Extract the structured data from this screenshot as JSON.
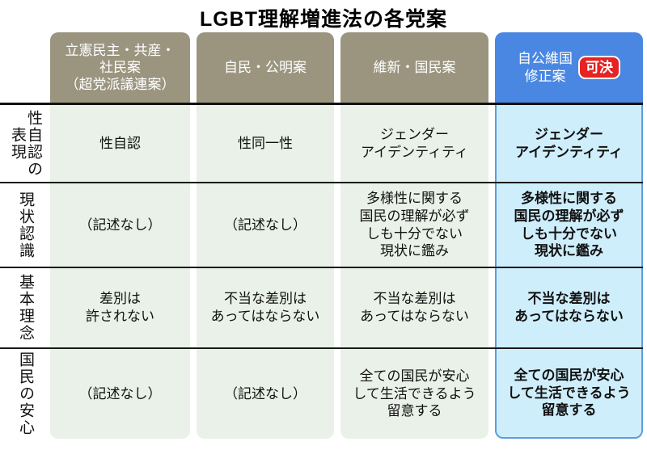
{
  "title": "LGBT理解増進法の各党案",
  "colors": {
    "header_olive": "#9b9580",
    "header_blue": "#4a87e2",
    "cell_green": "#e9f1e8",
    "cell_light_blue": "#cfeefb",
    "column_border_blue": "#5b9de2",
    "badge_red": "#e62222",
    "separator_black": "#1a1a1a"
  },
  "chart_data": {
    "type": "table",
    "title": "LGBT理解増進法の各党案",
    "columns": [
      {
        "label": "立憲民主・共産・\n社民案\n（超党派議連案）"
      },
      {
        "label": "自民・公明案"
      },
      {
        "label": "維新・国民案"
      },
      {
        "label": "自公維国\n修正案",
        "badge": "可決"
      }
    ],
    "rows": [
      {
        "header": "性自認の\n表現",
        "cells": [
          "性自認",
          "性同一性",
          "ジェンダー\nアイデンティティ",
          "ジェンダー\nアイデンティティ"
        ]
      },
      {
        "header": "現状認識",
        "cells": [
          "（記述なし）",
          "（記述なし）",
          "多様性に関する\n国民の理解が必ず\nしも十分でない\n現状に鑑み",
          "多様性に関する\n国民の理解が必ず\nしも十分でない\n現状に鑑み"
        ]
      },
      {
        "header": "基本理念",
        "cells": [
          "差別は\n許されない",
          "不当な差別は\nあってはならない",
          "不当な差別は\nあってはならない",
          "不当な差別は\nあってはならない"
        ]
      },
      {
        "header": "国民の安心",
        "cells": [
          "（記述なし）",
          "（記述なし）",
          "全ての国民が安心\nして生活できるよう\n留意する",
          "全ての国民が安心\nして生活できるよう\n留意する"
        ]
      }
    ]
  }
}
